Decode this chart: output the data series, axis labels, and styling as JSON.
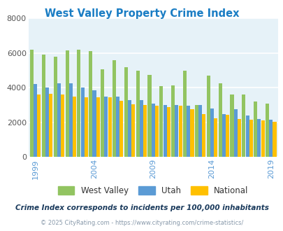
{
  "title": "West Valley Property Crime Index",
  "title_color": "#1a7dc4",
  "subtitle": "Crime Index corresponds to incidents per 100,000 inhabitants",
  "footer": "© 2025 CityRating.com - https://www.cityrating.com/crime-statistics/",
  "years": [
    1999,
    2000,
    2001,
    2002,
    2003,
    2004,
    2005,
    2006,
    2007,
    2008,
    2009,
    2010,
    2011,
    2012,
    2013,
    2014,
    2015,
    2016,
    2017,
    2018,
    2019
  ],
  "west_valley": [
    6200,
    5900,
    5800,
    6150,
    6200,
    6100,
    5050,
    5600,
    5200,
    5000,
    4750,
    4100,
    4150,
    5000,
    3000,
    4700,
    4250,
    3600,
    3600,
    3200,
    3100
  ],
  "utah": [
    4200,
    4000,
    4250,
    4250,
    4000,
    3850,
    3500,
    3500,
    3300,
    3300,
    3100,
    3000,
    3000,
    2950,
    3000,
    2800,
    2500,
    2750,
    2400,
    2200,
    2150
  ],
  "national": [
    3600,
    3650,
    3600,
    3500,
    3450,
    3450,
    3450,
    3250,
    3050,
    3000,
    2950,
    2900,
    2950,
    2750,
    2500,
    2250,
    2450,
    2200,
    2150,
    2100,
    2050
  ],
  "bar_colors": [
    "#92c461",
    "#5b9bd5",
    "#ffc000"
  ],
  "bg_color": "#e6f2f8",
  "ylim": [
    0,
    8000
  ],
  "yticks": [
    0,
    2000,
    4000,
    6000,
    8000
  ],
  "xlabel_years": [
    1999,
    2004,
    2009,
    2014,
    2019
  ],
  "legend_labels": [
    "West Valley",
    "Utah",
    "National"
  ],
  "grid_color": "#ffffff",
  "tick_color": "#5b9bd5",
  "subtitle_color": "#1a3a5c",
  "footer_color": "#8899aa"
}
